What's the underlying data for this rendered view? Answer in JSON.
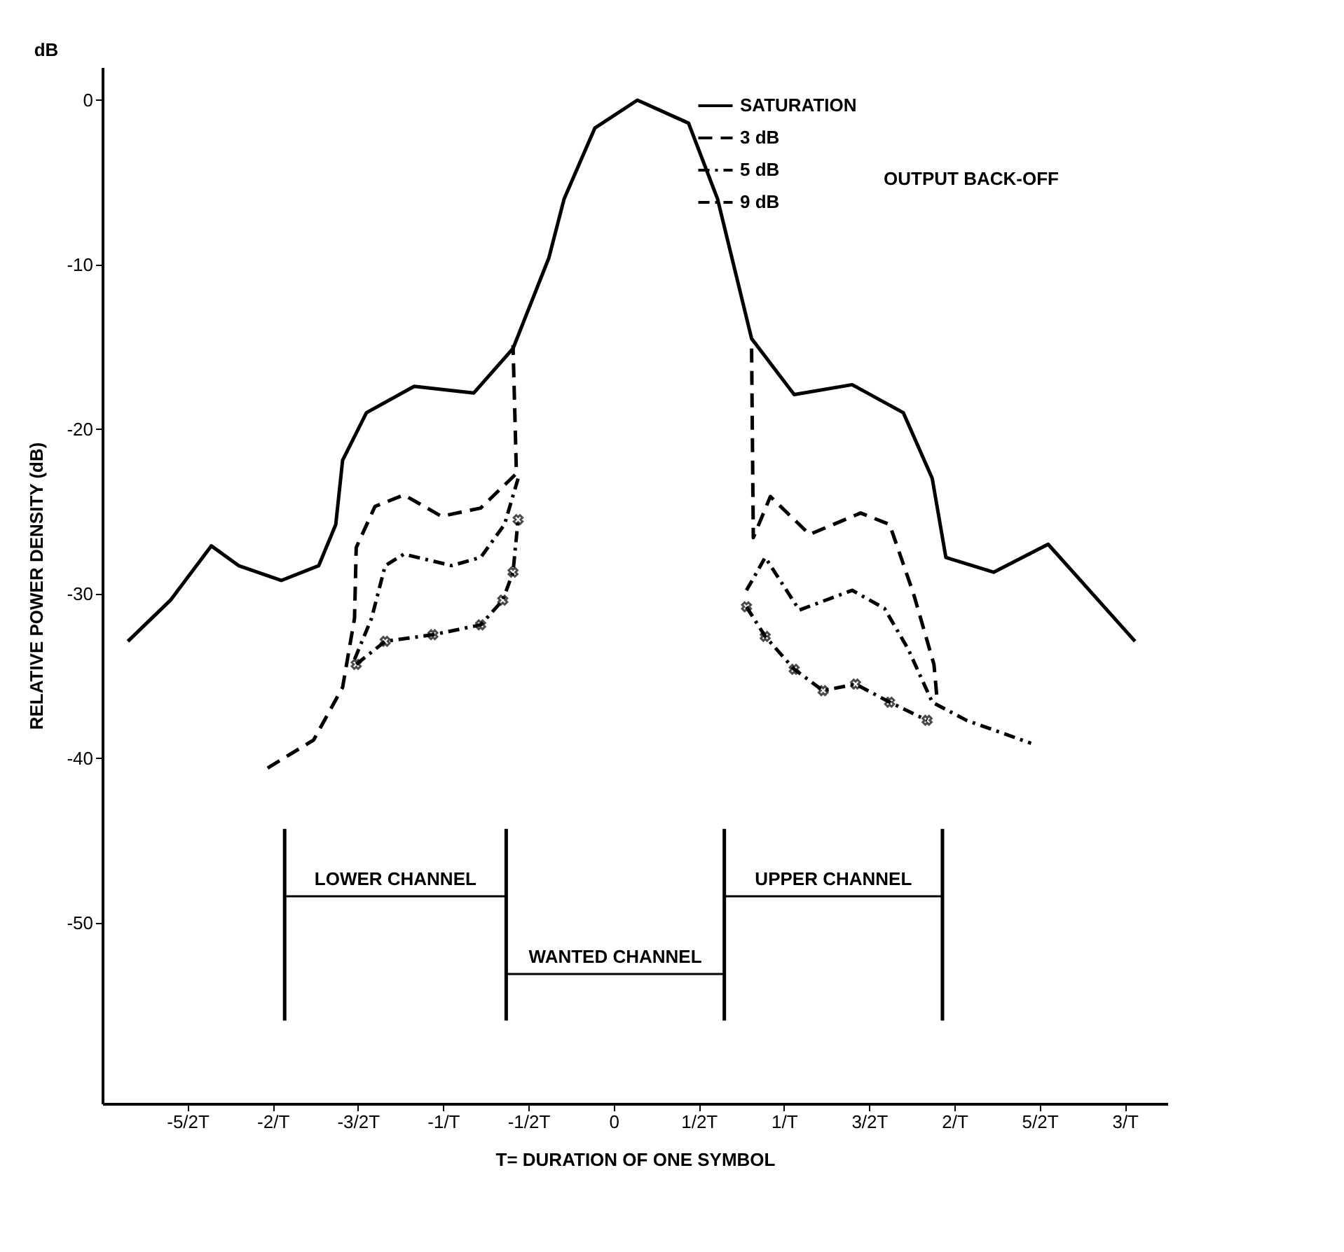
{
  "chart_data": {
    "type": "line",
    "xlabel": "T= DURATION OF ONE SYMBOL",
    "ylabel": "RELATIVE POWER DENSITY  (dB)",
    "xlim": [
      -3,
      3.25
    ],
    "ylim": [
      -61,
      2
    ],
    "xticks": [
      {
        "value": -2.5,
        "label": "-5/2T"
      },
      {
        "value": -2,
        "label": "-2/T"
      },
      {
        "value": -1.5,
        "label": "-3/2T"
      },
      {
        "value": -1,
        "label": "-1/T"
      },
      {
        "value": -0.5,
        "label": "-1/2T"
      },
      0,
      {
        "value": 0.5,
        "label": "1/2T"
      },
      {
        "value": 1,
        "label": "1/T"
      },
      {
        "value": 1.5,
        "label": "3/2T"
      },
      {
        "value": 2,
        "label": "2/T"
      },
      {
        "value": 2.5,
        "label": "5/2T"
      },
      {
        "value": 3,
        "label": "3/T"
      }
    ],
    "yticks": [
      0,
      -10,
      -20,
      -30,
      -40,
      -50
    ],
    "grid": false,
    "legend": "top right",
    "series": [
      {
        "name": "SATURATION",
        "color": "#000000",
        "line_style": "solid",
        "x": [
          -2.85,
          -2.6,
          -2.36,
          -2.2,
          -1.95,
          -1.73,
          -1.63,
          -1.59,
          -1.45,
          -1.17,
          -0.82,
          -0.59,
          -0.38,
          -0.29,
          -0.11,
          0.14,
          0.44,
          0.61,
          0.81,
          1.06,
          1.4,
          1.7,
          1.87,
          1.95,
          2.23,
          2.55,
          3.06
        ],
        "values": [
          -32.9,
          -30.4,
          -27.1,
          -28.3,
          -29.2,
          -28.3,
          -25.8,
          -21.9,
          -19,
          -17.4,
          -17.8,
          -15.1,
          -9.6,
          -6,
          -1.7,
          0,
          -1.4,
          -6,
          -14.5,
          -17.9,
          -17.3,
          -19,
          -23,
          -27.8,
          -28.7,
          -27,
          -32.9
        ]
      },
      {
        "name": "3 dB",
        "color": "#000000",
        "line_style": "dashed",
        "x": [
          -2.03,
          -1.76,
          -1.59,
          -1.52,
          -1.51,
          -1.4,
          -1.23,
          -1.01,
          -0.78,
          -0.57,
          -0.59
        ],
        "values": [
          -40.6,
          -38.9,
          -35.7,
          -31.5,
          -27.2,
          -24.7,
          -24,
          -25.3,
          -24.8,
          -22.7,
          -14.9
        ]
      },
      {
        "color": "#000000",
        "line_style": "dashed",
        "x": [
          0.81,
          0.82,
          0.92,
          1.15,
          1.45,
          1.62,
          1.76,
          1.88,
          1.9
        ],
        "values": [
          -15.1,
          -26.6,
          -24.1,
          -26.4,
          -25.1,
          -25.8,
          -30,
          -34.3,
          -36.6
        ]
      },
      {
        "name": "5 dB",
        "color": "#000000",
        "line_style": "dotted",
        "x": [
          -1.52,
          -1.42,
          -1.34,
          -1.23,
          -0.95,
          -0.78,
          -0.64,
          -0.56
        ],
        "values": [
          -34,
          -31.5,
          -28.3,
          -27.6,
          -28.3,
          -27.8,
          -25.8,
          -23
        ]
      },
      {
        "color": "#000000",
        "line_style": "dotted",
        "x": [
          0.78,
          0.89,
          1.09,
          1.4,
          1.59,
          1.73,
          1.87,
          2.07,
          2.45
        ],
        "values": [
          -29.8,
          -27.8,
          -31,
          -29.8,
          -30.9,
          -33.4,
          -36.6,
          -37.7,
          -39.1
        ]
      },
      {
        "name": "9 dB",
        "color": "#000000",
        "line_style": "dotted",
        "marker": "cross",
        "x": [
          -1.51,
          -1.34,
          -1.06,
          -0.78,
          -0.65,
          -0.59,
          -0.56
        ],
        "values": [
          -34.3,
          -32.9,
          -32.5,
          -31.9,
          -30.4,
          -28.7,
          -25.5
        ]
      },
      {
        "color": "#000000",
        "line_style": "dotted",
        "marker": "cross",
        "x": [
          0.78,
          0.89,
          1.06,
          1.23,
          1.42,
          1.62,
          1.84
        ],
        "values": [
          -30.8,
          -32.6,
          -34.6,
          -35.9,
          -35.5,
          -36.6,
          -37.7
        ]
      }
    ],
    "ref_lines": [
      {
        "axis": "x",
        "value": -1.93
      },
      {
        "axis": "x",
        "value": -0.63
      },
      {
        "axis": "x",
        "value": 0.65
      },
      {
        "axis": "x",
        "value": 1.93
      }
    ],
    "annotations": [
      "LOWER CHANNEL",
      "WANTED CHANNEL",
      "UPPER CHANNEL",
      "dB",
      "OUTPUT BACK-OFF"
    ]
  }
}
